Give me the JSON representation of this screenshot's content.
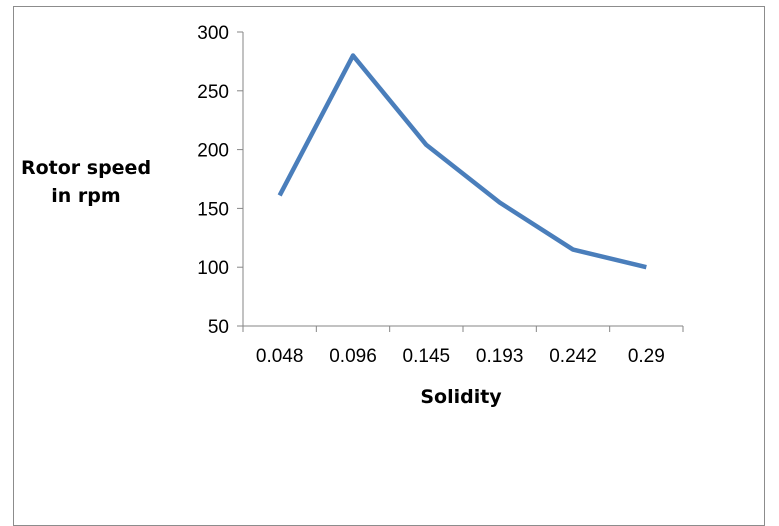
{
  "chart_data": {
    "type": "line",
    "categories": [
      "0.048",
      "0.096",
      "0.145",
      "0.193",
      "0.242",
      "0.29"
    ],
    "series": [
      {
        "values": [
          161,
          280,
          204,
          155,
          115,
          100
        ]
      }
    ],
    "xlabel": "Solidity",
    "ylabel_lines": [
      "Rotor speed",
      "in rpm"
    ],
    "ylim": [
      50,
      300
    ],
    "yticks": [
      300,
      250,
      200,
      150,
      100,
      50
    ],
    "grid": false,
    "legend": "none",
    "line_color": "#4a7ebb"
  }
}
